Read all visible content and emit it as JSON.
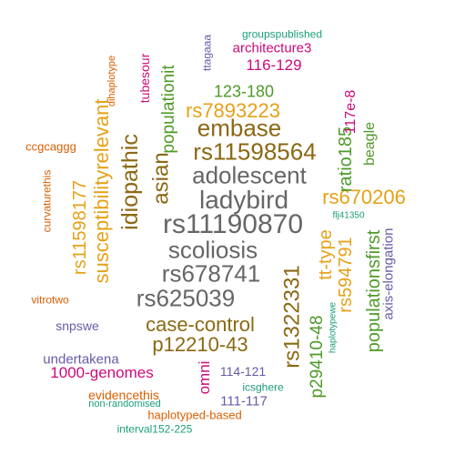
{
  "palette": {
    "gray": "#666666",
    "brown": "#8B6914",
    "olive": "#4E9A28",
    "orange": "#E6A117",
    "gold": "#D4A017",
    "magenta": "#CC0A7A",
    "purple": "#6A5AA8",
    "rust": "#D95F02",
    "teal": "#1B9E77"
  },
  "words": [
    "rs11190870",
    "ladybird",
    "adolescent",
    "scoliosis",
    "rs678741",
    "rs625039",
    "rs11598564",
    "embase",
    "idiopathic",
    "asian",
    "case-control",
    "p12210-43",
    "rs1322331",
    "rs7893223",
    "rs670206",
    "susceptibilityrelevant",
    "rs11598177",
    "populationit",
    "ratio185",
    "tt-type",
    "rs594791",
    "populationsfirst",
    "p29410-48",
    "beagle",
    "123-180",
    "116-129",
    "architecture3",
    "117e-8",
    "1000-genomes",
    "omni",
    "tubesour",
    "axis-elongation",
    "114-121",
    "111-117",
    "ccgcaggg",
    "undertakena",
    "evidencethis",
    "haplotyped-based",
    "snpswe",
    "vitrotwo",
    "curvaturethis",
    "dihaplotype",
    "ttagaaa",
    "groupspublished",
    "flj41350",
    "haplotypewe",
    "icsghere",
    "non-randomised",
    "interval152-225"
  ]
}
